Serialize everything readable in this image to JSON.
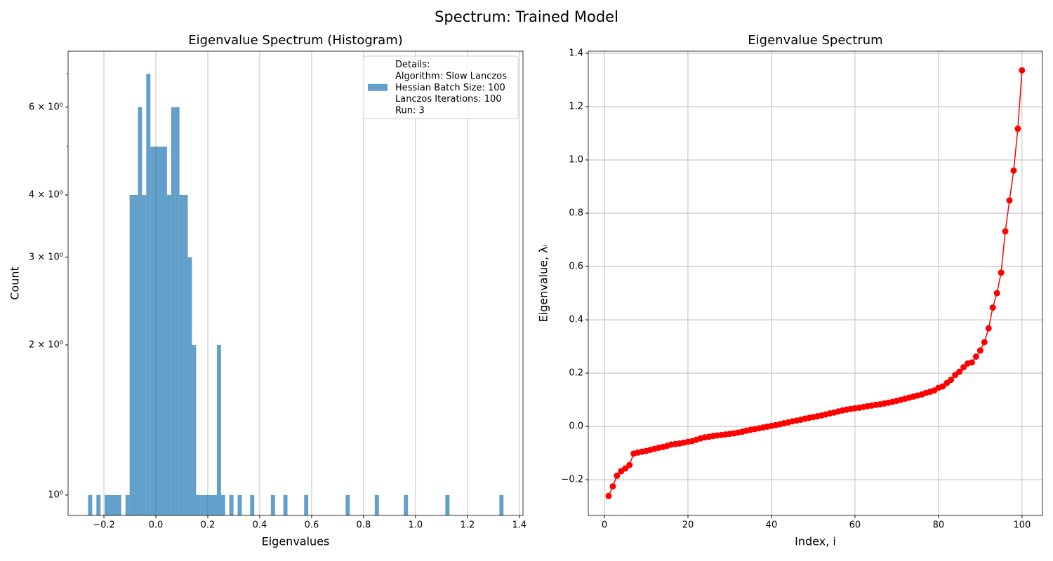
{
  "title": "Spectrum: Trained Model",
  "chart_data": [
    {
      "type": "histogram",
      "title": "Eigenvalue Spectrum (Histogram)",
      "xlabel": "Eigenvalues",
      "ylabel": "Count",
      "bins": [
        -0.261,
        -0.245,
        -0.229,
        -0.213,
        -0.197,
        -0.181,
        -0.165,
        -0.149,
        -0.133,
        -0.117,
        -0.101,
        -0.085,
        -0.069,
        -0.053,
        -0.037,
        -0.021,
        -0.005,
        0.011,
        0.027,
        0.043,
        0.059,
        0.075,
        0.091,
        0.107,
        0.123,
        0.139,
        0.155,
        0.171,
        0.187,
        0.203,
        0.219,
        0.235,
        0.251,
        0.267,
        0.283,
        0.299,
        0.315,
        0.331,
        0.347,
        0.363,
        0.379,
        0.395,
        0.411,
        0.427,
        0.443,
        0.459,
        0.475,
        0.491,
        0.507,
        0.523,
        0.539,
        0.555,
        0.571,
        0.587,
        0.603,
        0.619,
        0.635,
        0.651,
        0.667,
        0.683,
        0.699,
        0.715,
        0.731,
        0.747,
        0.763,
        0.779,
        0.795,
        0.811,
        0.827,
        0.843,
        0.859,
        0.875,
        0.891,
        0.907,
        0.923,
        0.939,
        0.955,
        0.971,
        0.987,
        1.003,
        1.019,
        1.035,
        1.051,
        1.067,
        1.083,
        1.099,
        1.115,
        1.131,
        1.147,
        1.163,
        1.179,
        1.195,
        1.211,
        1.227,
        1.243,
        1.259,
        1.275,
        1.291,
        1.307,
        1.323,
        1.339
      ],
      "series": [
        {
          "name": "Details:\nAlgorithm: Slow Lanczos\nHessian Batch Size: 100\nLanczos Iterations: 100\nRun: 3",
          "color": "#1f77b4",
          "opacity": 0.7,
          "values": [
            1,
            0,
            1,
            0,
            1,
            1,
            1,
            1,
            0,
            1,
            4,
            4,
            6,
            4,
            7,
            5,
            5,
            5,
            5,
            4,
            6,
            6,
            4,
            4,
            3,
            2,
            1,
            1,
            1,
            1,
            1,
            2,
            1,
            0,
            1,
            0,
            1,
            0,
            0,
            1,
            0,
            0,
            0,
            0,
            1,
            0,
            0,
            1,
            0,
            0,
            0,
            0,
            1,
            0,
            0,
            0,
            0,
            0,
            0,
            0,
            0,
            0,
            1,
            0,
            0,
            0,
            0,
            0,
            0,
            1,
            0,
            0,
            0,
            0,
            0,
            0,
            1,
            0,
            0,
            0,
            0,
            0,
            0,
            0,
            0,
            0,
            1,
            0,
            0,
            0,
            0,
            0,
            0,
            0,
            0,
            0,
            0,
            0,
            0,
            1
          ]
        }
      ],
      "xlim": [
        -0.338,
        1.414
      ],
      "ylim": [
        0.91,
        7.77
      ],
      "yscale": "log",
      "xticks": [
        {
          "value": -0.2,
          "label": "−0.2"
        },
        {
          "value": 0,
          "label": "0.0"
        },
        0.2,
        0.4,
        0.6,
        0.8,
        {
          "value": 1,
          "label": "1.0"
        },
        1.2,
        1.4
      ],
      "yticks": [
        {
          "value": 1,
          "label": "10⁰"
        },
        {
          "value": 2,
          "label": "2 × 10⁰"
        },
        {
          "value": 3,
          "label": "3 × 10⁰"
        },
        {
          "value": 4,
          "label": "4 × 10⁰"
        },
        {
          "value": 6,
          "label": "6 × 10⁰"
        }
      ],
      "yminorticks": [
        5,
        7
      ],
      "grid": "x",
      "legend": "upper right"
    },
    {
      "type": "line",
      "title": "Eigenvalue Spectrum",
      "xlabel": "Index, i",
      "ylabel": "Eigenvalue, λᵢ",
      "x": [
        1,
        2,
        3,
        4,
        5,
        6,
        7,
        8,
        9,
        10,
        11,
        12,
        13,
        14,
        15,
        16,
        17,
        18,
        19,
        20,
        21,
        22,
        23,
        24,
        25,
        26,
        27,
        28,
        29,
        30,
        31,
        32,
        33,
        34,
        35,
        36,
        37,
        38,
        39,
        40,
        41,
        42,
        43,
        44,
        45,
        46,
        47,
        48,
        49,
        50,
        51,
        52,
        53,
        54,
        55,
        56,
        57,
        58,
        59,
        60,
        61,
        62,
        63,
        64,
        65,
        66,
        67,
        68,
        69,
        70,
        71,
        72,
        73,
        74,
        75,
        76,
        77,
        78,
        79,
        80,
        81,
        82,
        83,
        84,
        85,
        86,
        87,
        88,
        89,
        90,
        91,
        92,
        93,
        94,
        95,
        96,
        97,
        98,
        99,
        100
      ],
      "series": [
        {
          "color": "#ff0000",
          "marker": "o",
          "values": [
            -0.261,
            -0.225,
            -0.185,
            -0.168,
            -0.158,
            -0.145,
            -0.102,
            -0.098,
            -0.095,
            -0.092,
            -0.088,
            -0.084,
            -0.08,
            -0.077,
            -0.073,
            -0.068,
            -0.066,
            -0.064,
            -0.061,
            -0.058,
            -0.055,
            -0.05,
            -0.045,
            -0.041,
            -0.039,
            -0.036,
            -0.034,
            -0.032,
            -0.03,
            -0.028,
            -0.026,
            -0.023,
            -0.02,
            -0.016,
            -0.013,
            -0.01,
            -0.007,
            -0.004,
            -0.001,
            0.002,
            0.005,
            0.008,
            0.012,
            0.015,
            0.019,
            0.022,
            0.025,
            0.029,
            0.032,
            0.035,
            0.038,
            0.041,
            0.045,
            0.049,
            0.052,
            0.056,
            0.06,
            0.063,
            0.066,
            0.068,
            0.07,
            0.073,
            0.076,
            0.078,
            0.081,
            0.083,
            0.086,
            0.089,
            0.092,
            0.096,
            0.1,
            0.104,
            0.108,
            0.112,
            0.116,
            0.12,
            0.126,
            0.13,
            0.135,
            0.145,
            0.15,
            0.163,
            0.175,
            0.193,
            0.205,
            0.222,
            0.236,
            0.24,
            0.262,
            0.285,
            0.316,
            0.368,
            0.446,
            0.5,
            0.577,
            0.732,
            0.848,
            0.96,
            1.117,
            1.336
          ]
        }
      ],
      "xlim": [
        -3.87,
        104.9
      ],
      "ylim": [
        -0.334,
        1.408
      ],
      "xticks": [
        0,
        20,
        40,
        60,
        80,
        100
      ],
      "yticks": [
        {
          "value": -0.2,
          "label": "−0.2"
        },
        {
          "value": 0,
          "label": "0.0"
        },
        0.2,
        0.4,
        0.6,
        0.8,
        {
          "value": 1,
          "label": "1.0"
        },
        1.2,
        1.4
      ],
      "grid": "both"
    }
  ]
}
